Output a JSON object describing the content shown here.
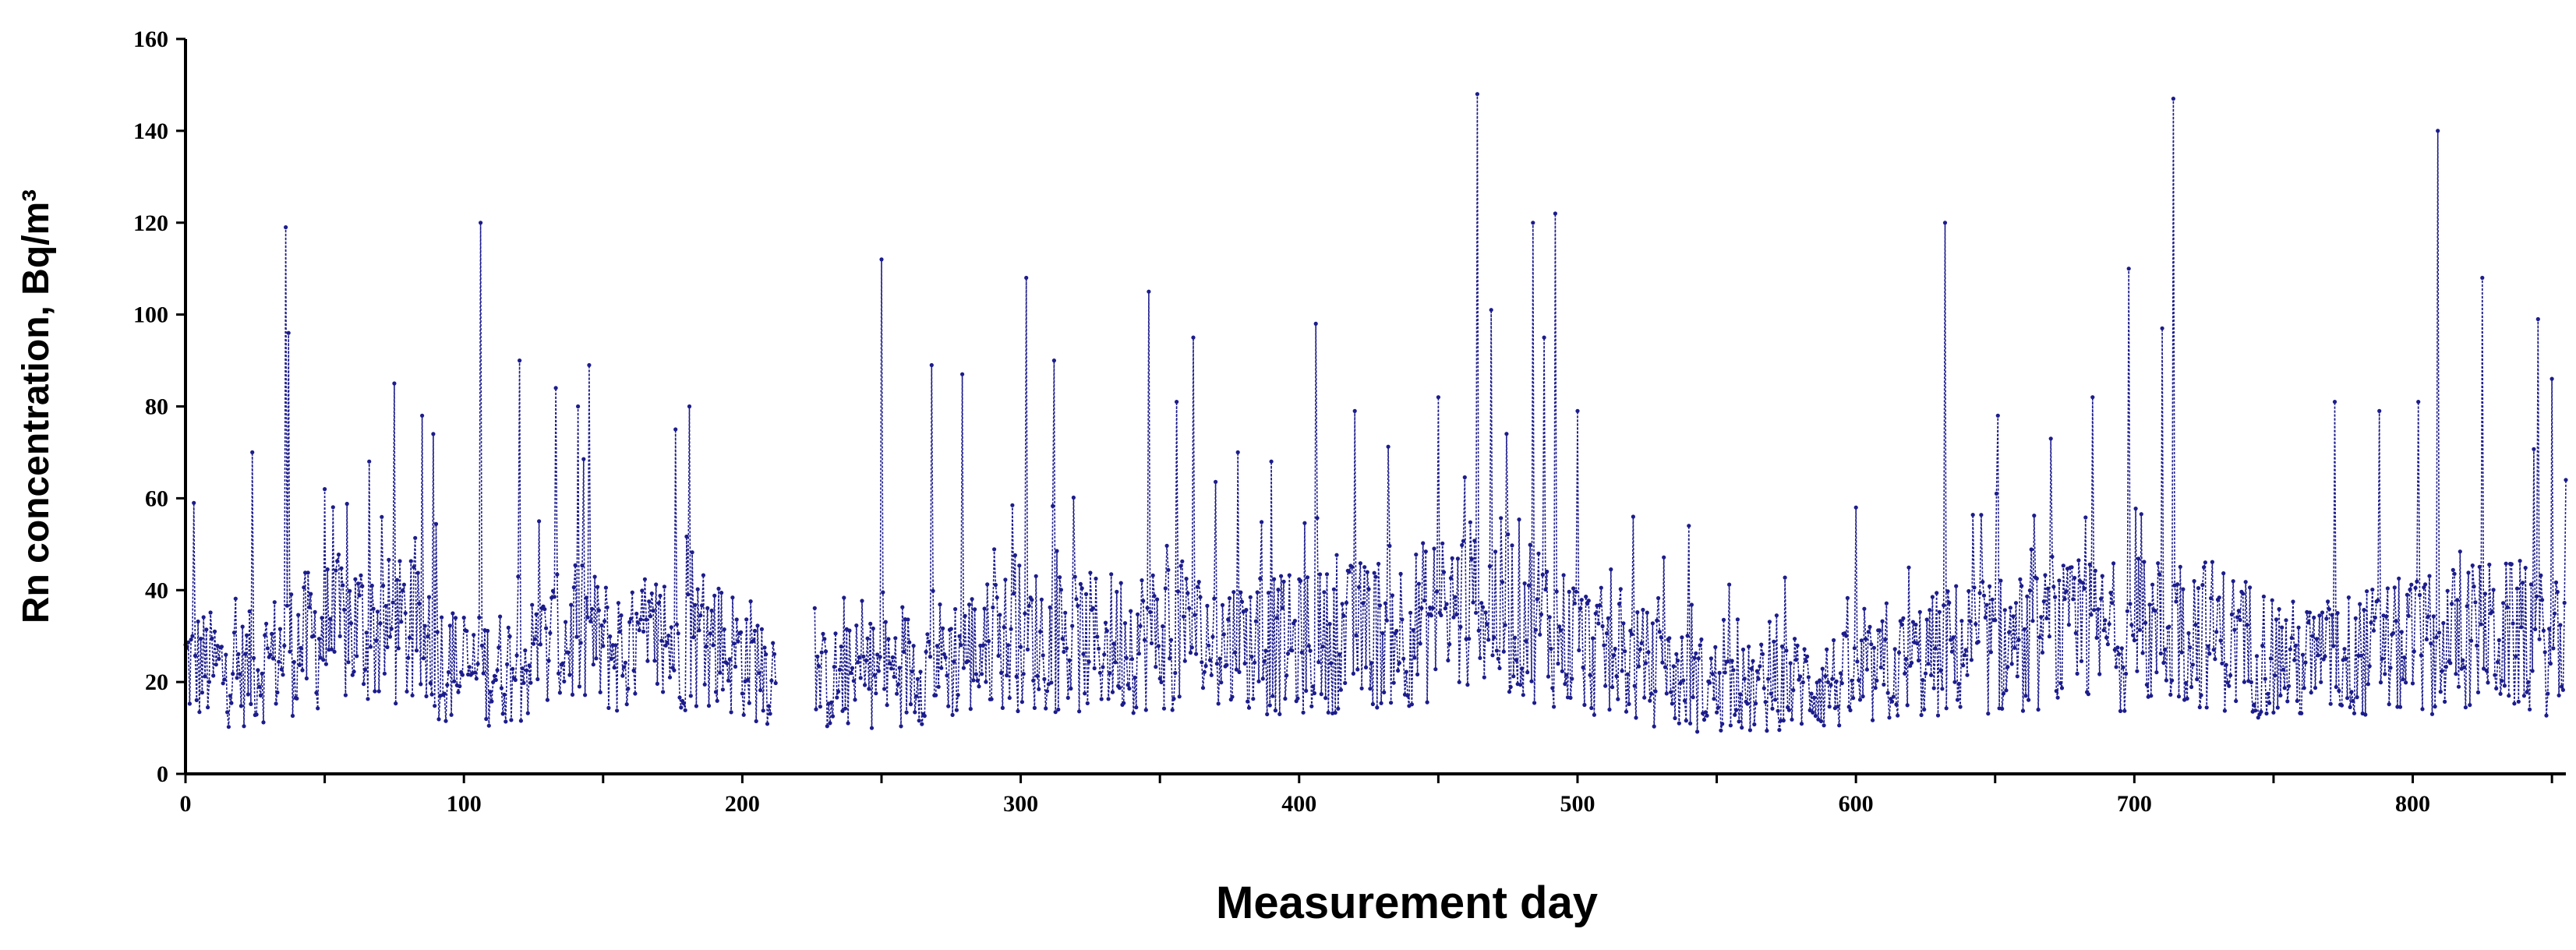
{
  "chart_data": {
    "type": "line",
    "title": "",
    "xlabel": "Measurement day",
    "ylabel": "Rn concentration, Bq/m³",
    "xlim": [
      0,
      855
    ],
    "ylim": [
      0,
      160
    ],
    "x_ticks": [
      0,
      100,
      200,
      300,
      400,
      500,
      600,
      700,
      800
    ],
    "y_ticks": [
      0,
      20,
      40,
      60,
      80,
      100,
      120,
      140,
      160
    ],
    "grid": false,
    "legend": "none",
    "colors": {
      "series": "#1c1c8c",
      "axis": "#000000"
    },
    "series": [
      {
        "values_note_visible": "",
        "segments": [
          {
            "x_start": 0,
            "x_end": 212
          },
          {
            "x_start": 226,
            "x_end": 855
          }
        ],
        "mean_profile": [
          [
            0,
            24
          ],
          [
            20,
            22
          ],
          [
            40,
            28
          ],
          [
            60,
            32
          ],
          [
            80,
            30
          ],
          [
            100,
            22
          ],
          [
            120,
            24
          ],
          [
            140,
            30
          ],
          [
            160,
            26
          ],
          [
            180,
            30
          ],
          [
            200,
            26
          ],
          [
            212,
            22
          ],
          [
            226,
            20
          ],
          [
            250,
            22
          ],
          [
            280,
            26
          ],
          [
            300,
            30
          ],
          [
            320,
            28
          ],
          [
            350,
            30
          ],
          [
            380,
            28
          ],
          [
            400,
            28
          ],
          [
            420,
            30
          ],
          [
            440,
            32
          ],
          [
            460,
            36
          ],
          [
            480,
            36
          ],
          [
            500,
            28
          ],
          [
            520,
            24
          ],
          [
            540,
            20
          ],
          [
            560,
            18
          ],
          [
            580,
            20
          ],
          [
            600,
            20
          ],
          [
            620,
            24
          ],
          [
            640,
            28
          ],
          [
            660,
            28
          ],
          [
            680,
            30
          ],
          [
            700,
            30
          ],
          [
            720,
            32
          ],
          [
            740,
            28
          ],
          [
            760,
            24
          ],
          [
            780,
            26
          ],
          [
            800,
            28
          ],
          [
            820,
            30
          ],
          [
            840,
            30
          ],
          [
            855,
            26
          ]
        ],
        "peaks": [
          [
            3,
            59
          ],
          [
            24,
            70
          ],
          [
            36,
            119
          ],
          [
            37,
            96
          ],
          [
            50,
            62
          ],
          [
            66,
            68
          ],
          [
            75,
            85
          ],
          [
            85,
            78
          ],
          [
            89,
            74
          ],
          [
            106,
            120
          ],
          [
            120,
            90
          ],
          [
            127,
            55
          ],
          [
            133,
            84
          ],
          [
            141,
            80
          ],
          [
            145,
            89
          ],
          [
            176,
            75
          ],
          [
            181,
            80
          ],
          [
            250,
            112
          ],
          [
            268,
            89
          ],
          [
            279,
            87
          ],
          [
            302,
            108
          ],
          [
            312,
            90
          ],
          [
            346,
            105
          ],
          [
            356,
            81
          ],
          [
            362,
            95
          ],
          [
            378,
            70
          ],
          [
            390,
            68
          ],
          [
            406,
            98
          ],
          [
            420,
            79
          ],
          [
            450,
            82
          ],
          [
            464,
            148
          ],
          [
            469,
            101
          ],
          [
            484,
            120
          ],
          [
            488,
            95
          ],
          [
            492,
            122
          ],
          [
            500,
            79
          ],
          [
            520,
            56
          ],
          [
            540,
            54
          ],
          [
            600,
            58
          ],
          [
            632,
            120
          ],
          [
            651,
            78
          ],
          [
            670,
            73
          ],
          [
            685,
            82
          ],
          [
            698,
            110
          ],
          [
            710,
            97
          ],
          [
            714,
            147
          ],
          [
            772,
            81
          ],
          [
            788,
            79
          ],
          [
            802,
            81
          ],
          [
            809,
            140
          ],
          [
            825,
            108
          ],
          [
            845,
            99
          ],
          [
            850,
            86
          ],
          [
            855,
            64
          ]
        ],
        "sampling_interval_days": 0.5
      }
    ]
  }
}
